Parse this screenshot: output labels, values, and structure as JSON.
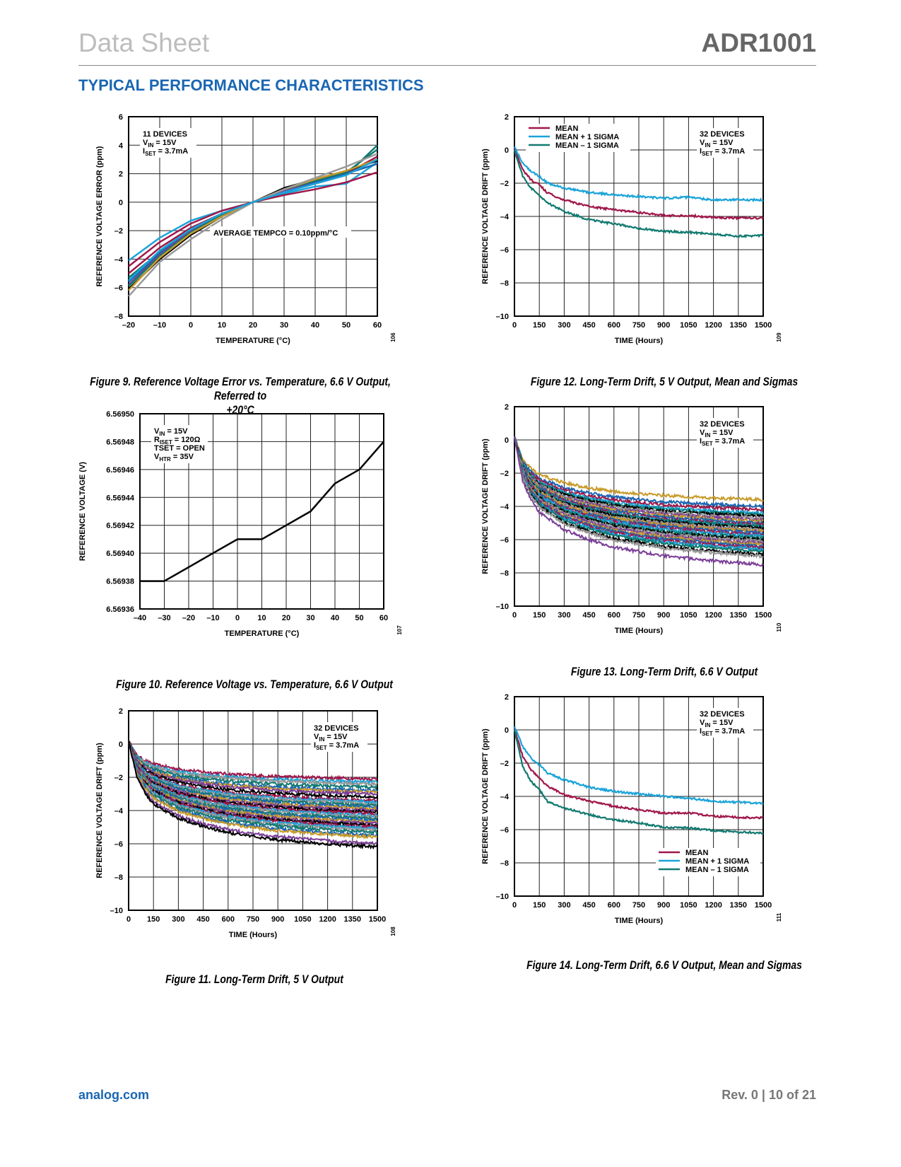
{
  "header": {
    "doc_type": "Data Sheet",
    "part_number": "ADR1001"
  },
  "section_title": "TYPICAL PERFORMANCE CHARACTERISTICS",
  "footer": {
    "website": "analog.com",
    "page_info": "Rev. 0 | 10 of 21"
  },
  "colors": {
    "accent": "#1a66b3",
    "mean": "#a0174a",
    "plus_sigma": "#1aa3d9",
    "minus_sigma": "#117a70"
  },
  "chart_data": [
    {
      "id": "fig9",
      "type": "line",
      "caption": "Figure 9. Reference Voltage Error vs. Temperature, 6.6 V Output, Referred to +20°C",
      "caption_line1": "Figure 9. Reference Voltage Error vs. Temperature, 6.6 V Output, Referred to",
      "caption_line2": "+20°C",
      "figure_code": "106",
      "xlabel": "TEMPERATURE (°C)",
      "ylabel": "REFERENCE VOLTAGE ERROR (ppm)",
      "xlim": [
        -20,
        60
      ],
      "ylim": [
        -8,
        6
      ],
      "xticks": [
        -20,
        -10,
        0,
        10,
        20,
        30,
        40,
        50,
        60
      ],
      "yticks": [
        -8,
        -6,
        -4,
        -2,
        0,
        2,
        4,
        6
      ],
      "xtick_labels": [
        "–20",
        "–10",
        "0",
        "10",
        "20",
        "30",
        "40",
        "50",
        "60"
      ],
      "ytick_labels": [
        "–8",
        "–6",
        "–4",
        "–2",
        "0",
        "2",
        "4",
        "6"
      ],
      "grid": true,
      "annotations": [
        "11 DEVICES",
        "V_IN = 15V",
        "I_SET = 3.7mA",
        "AVERAGE TEMPCO = 0.10ppm/°C"
      ],
      "x": [
        -20,
        -10,
        0,
        10,
        20,
        30,
        40,
        50,
        60
      ],
      "series": [
        {
          "name": "device-1",
          "color": "#1aa3d9",
          "values": [
            -4.1,
            -2.5,
            -1.3,
            -0.6,
            0,
            0.6,
            1.1,
            1.3,
            2.8
          ]
        },
        {
          "name": "device-2",
          "color": "#a0174a",
          "values": [
            -4.5,
            -2.8,
            -1.5,
            -0.6,
            0,
            0.5,
            0.9,
            1.4,
            2.1
          ]
        },
        {
          "name": "device-3",
          "color": "#a0174a",
          "values": [
            -5.0,
            -3.2,
            -1.8,
            -0.8,
            0,
            0.8,
            1.4,
            2.0,
            3.2
          ]
        },
        {
          "name": "device-4",
          "color": "#117a70",
          "values": [
            -5.3,
            -3.5,
            -1.9,
            -0.8,
            0,
            0.7,
            1.3,
            1.9,
            4.0
          ]
        },
        {
          "name": "device-5",
          "color": "#1a66b3",
          "values": [
            -5.6,
            -3.6,
            -2.0,
            -0.9,
            0,
            0.8,
            1.4,
            2.0,
            2.7
          ]
        },
        {
          "name": "device-6",
          "color": "#7b3f98",
          "values": [
            -5.8,
            -3.7,
            -2.0,
            -0.9,
            0,
            0.8,
            1.5,
            2.1,
            3.0
          ]
        },
        {
          "name": "device-7",
          "color": "#117a70",
          "values": [
            -5.9,
            -3.8,
            -2.1,
            -0.9,
            0,
            0.9,
            1.5,
            2.1,
            3.7
          ]
        },
        {
          "name": "device-8",
          "color": "#000000",
          "values": [
            -6.1,
            -4.0,
            -2.3,
            -1.0,
            0,
            1.0,
            1.6,
            2.2,
            2.9
          ]
        },
        {
          "name": "device-9",
          "color": "#c89a2a",
          "values": [
            -6.2,
            -3.9,
            -2.2,
            -1.0,
            0,
            0.9,
            1.6,
            2.2,
            3.0
          ]
        },
        {
          "name": "device-10",
          "color": "#999999",
          "values": [
            -6.6,
            -4.2,
            -2.6,
            -1.2,
            0,
            0.9,
            1.7,
            2.5,
            3.4
          ]
        },
        {
          "name": "device-11",
          "color": "#1aa3d9",
          "values": [
            -5.5,
            -3.4,
            -1.9,
            -0.8,
            0,
            0.7,
            1.3,
            1.9,
            3.0
          ]
        }
      ]
    },
    {
      "id": "fig10",
      "type": "line",
      "caption": "Figure 10. Reference Voltage vs. Temperature, 6.6 V Output",
      "figure_code": "107",
      "xlabel": "TEMPERATURE (°C)",
      "ylabel": "REFERENCE VOLTAGE (V)",
      "xlim": [
        -40,
        60
      ],
      "ylim": [
        6.56936,
        6.5695
      ],
      "xticks": [
        -40,
        -30,
        -20,
        -10,
        0,
        10,
        20,
        30,
        40,
        50,
        60
      ],
      "yticks": [
        6.56936,
        6.56938,
        6.5694,
        6.56942,
        6.56944,
        6.56946,
        6.56948,
        6.5695
      ],
      "xtick_labels": [
        "–40",
        "–30",
        "–20",
        "–10",
        "0",
        "10",
        "20",
        "30",
        "40",
        "50",
        "60"
      ],
      "ytick_labels": [
        "6.56936",
        "6.56938",
        "6.56940",
        "6.56942",
        "6.56944",
        "6.56946",
        "6.56948",
        "6.56950"
      ],
      "grid": true,
      "annotations": [
        "V_IN = 15V",
        "R_ISET = 120Ω",
        "TSET = OPEN",
        "V_HTR = 35V"
      ],
      "x": [
        -40,
        -30,
        -20,
        -10,
        0,
        10,
        20,
        30,
        40,
        50,
        60
      ],
      "series": [
        {
          "name": "reference-voltage",
          "color": "#000000",
          "values": [
            6.56938,
            6.56938,
            6.56939,
            6.5694,
            6.56941,
            6.56941,
            6.56942,
            6.56943,
            6.56945,
            6.56946,
            6.56948
          ]
        }
      ]
    },
    {
      "id": "fig11",
      "type": "line",
      "caption": "Figure 11. Long-Term Drift, 5 V Output",
      "figure_code": "108",
      "xlabel": "TIME (Hours)",
      "ylabel": "REFERENCE VOLTAGE DRIFT (ppm)",
      "xlim": [
        0,
        1500
      ],
      "ylim": [
        -10,
        2
      ],
      "xticks": [
        0,
        150,
        300,
        450,
        600,
        750,
        900,
        1050,
        1200,
        1350,
        1500
      ],
      "yticks": [
        -10,
        -8,
        -6,
        -4,
        -2,
        0,
        2
      ],
      "xtick_labels": [
        "0",
        "150",
        "300",
        "450",
        "600",
        "750",
        "900",
        "1050",
        "1200",
        "1350",
        "1500"
      ],
      "ytick_labels": [
        "–10",
        "–8",
        "–6",
        "–4",
        "–2",
        "0",
        "2"
      ],
      "grid": true,
      "annotations": [
        "32 DEVICES",
        "V_IN = 15V",
        "I_SET = 3.7mA"
      ],
      "num_series": 32,
      "final_drift_range_ppm": [
        -6.2,
        -2.1
      ],
      "series_final_values": [
        -2.1,
        -2.3,
        -2.4,
        -2.6,
        -2.8,
        -2.9,
        -3.0,
        -3.2,
        -3.4,
        -3.5,
        -3.6,
        -3.7,
        -3.8,
        -3.9,
        -4.0,
        -4.1,
        -4.2,
        -4.3,
        -4.4,
        -4.5,
        -4.6,
        -4.7,
        -4.8,
        -4.9,
        -5.0,
        -5.1,
        -5.2,
        -5.3,
        -5.5,
        -5.6,
        -6.0,
        -6.2
      ],
      "series_colors": [
        "#a0174a",
        "#1aa3d9",
        "#999999",
        "#117a70",
        "#1a66b3",
        "#c89a2a",
        "#7b3f98",
        "#000000"
      ]
    },
    {
      "id": "fig12",
      "type": "line",
      "caption": "Figure 12. Long-Term Drift, 5 V Output, Mean and Sigmas",
      "figure_code": "109",
      "xlabel": "TIME (Hours)",
      "ylabel": "REFERENCE VOLTAGE DRIFT (ppm)",
      "xlim": [
        0,
        1500
      ],
      "ylim": [
        -10,
        2
      ],
      "xticks": [
        0,
        150,
        300,
        450,
        600,
        750,
        900,
        1050,
        1200,
        1350,
        1500
      ],
      "yticks": [
        -10,
        -8,
        -6,
        -4,
        -2,
        0,
        2
      ],
      "xtick_labels": [
        "0",
        "150",
        "300",
        "450",
        "600",
        "750",
        "900",
        "1050",
        "1200",
        "1350",
        "1500"
      ],
      "ytick_labels": [
        "–10",
        "–8",
        "–6",
        "–4",
        "–2",
        "0",
        "2"
      ],
      "grid": true,
      "legend": {
        "placement": "top-left",
        "entries": [
          "MEAN",
          "MEAN + 1 SIGMA",
          "MEAN – 1 SIGMA"
        ]
      },
      "annotations": [
        "32 DEVICES",
        "V_IN = 15V",
        "I_SET = 3.7mA"
      ],
      "x": [
        0,
        50,
        100,
        150,
        200,
        300,
        450,
        600,
        750,
        900,
        1050,
        1200,
        1350,
        1500
      ],
      "series": [
        {
          "name": "MEAN",
          "color": "#a0174a",
          "values": [
            0.1,
            -1.2,
            -1.8,
            -2.1,
            -2.6,
            -3.0,
            -3.4,
            -3.6,
            -3.75,
            -3.95,
            -3.95,
            -4.05,
            -4.1,
            -4.1
          ]
        },
        {
          "name": "MEAN + 1 SIGMA",
          "color": "#1aa3d9",
          "values": [
            0.2,
            -0.8,
            -1.3,
            -1.6,
            -2.0,
            -2.3,
            -2.55,
            -2.7,
            -2.8,
            -2.9,
            -2.85,
            -3.0,
            -3.0,
            -3.0
          ]
        },
        {
          "name": "MEAN – 1 SIGMA",
          "color": "#117a70",
          "values": [
            0.0,
            -1.6,
            -2.3,
            -2.7,
            -3.2,
            -3.7,
            -4.2,
            -4.45,
            -4.7,
            -4.9,
            -4.95,
            -5.05,
            -5.2,
            -5.15
          ]
        }
      ]
    },
    {
      "id": "fig13",
      "type": "line",
      "caption": "Figure 13. Long-Term Drift, 6.6 V Output",
      "figure_code": "110",
      "xlabel": "TIME (Hours)",
      "ylabel": "REFERENCE VOLTAGE DRIFT (ppm)",
      "xlim": [
        0,
        1500
      ],
      "ylim": [
        -10,
        2
      ],
      "xticks": [
        0,
        150,
        300,
        450,
        600,
        750,
        900,
        1050,
        1200,
        1350,
        1500
      ],
      "yticks": [
        -10,
        -8,
        -6,
        -4,
        -2,
        0,
        2
      ],
      "xtick_labels": [
        "0",
        "150",
        "300",
        "450",
        "600",
        "750",
        "900",
        "1050",
        "1200",
        "1350",
        "1500"
      ],
      "ytick_labels": [
        "–10",
        "–8",
        "–6",
        "–4",
        "–2",
        "0",
        "2"
      ],
      "grid": true,
      "annotations": [
        "32 DEVICES",
        "V_IN = 15V",
        "I_SET = 3.7mA"
      ],
      "num_series": 32,
      "final_drift_range_ppm": [
        -7.5,
        -3.6
      ],
      "series_final_values": [
        -3.6,
        -4.0,
        -4.2,
        -4.4,
        -4.5,
        -4.6,
        -4.7,
        -4.8,
        -4.9,
        -5.0,
        -5.1,
        -5.2,
        -5.2,
        -5.3,
        -5.4,
        -5.5,
        -5.5,
        -5.6,
        -5.7,
        -5.8,
        -5.9,
        -6.0,
        -6.1,
        -6.2,
        -6.3,
        -6.4,
        -6.5,
        -6.6,
        -6.7,
        -6.9,
        -7.0,
        -7.5
      ],
      "series_colors": [
        "#c89a2a",
        "#1a66b3",
        "#a0174a",
        "#1aa3d9",
        "#117a70",
        "#000000",
        "#999999",
        "#7b3f98"
      ]
    },
    {
      "id": "fig14",
      "type": "line",
      "caption": "Figure 14. Long-Term Drift, 6.6 V Output, Mean and Sigmas",
      "figure_code": "111",
      "xlabel": "TIME (Hours)",
      "ylabel": "REFERENCE VOLTAGE DRIFT (ppm)",
      "xlim": [
        0,
        1500
      ],
      "ylim": [
        -10,
        2
      ],
      "xticks": [
        0,
        150,
        300,
        450,
        600,
        750,
        900,
        1050,
        1200,
        1350,
        1500
      ],
      "yticks": [
        -10,
        -8,
        -6,
        -4,
        -2,
        0,
        2
      ],
      "xtick_labels": [
        "0",
        "150",
        "300",
        "450",
        "600",
        "750",
        "900",
        "1050",
        "1200",
        "1350",
        "1500"
      ],
      "ytick_labels": [
        "–10",
        "–8",
        "–6",
        "–4",
        "–2",
        "0",
        "2"
      ],
      "grid": true,
      "legend": {
        "placement": "bottom-right",
        "entries": [
          "MEAN",
          "MEAN + 1 SIGMA",
          "MEAN – 1 SIGMA"
        ]
      },
      "annotations": [
        "32 DEVICES",
        "V_IN = 15V",
        "I_SET = 3.7mA"
      ],
      "x": [
        0,
        50,
        100,
        150,
        200,
        300,
        450,
        600,
        750,
        900,
        1050,
        1200,
        1350,
        1500
      ],
      "series": [
        {
          "name": "MEAN",
          "color": "#a0174a",
          "values": [
            0.1,
            -1.6,
            -2.4,
            -2.9,
            -3.4,
            -3.9,
            -4.3,
            -4.6,
            -4.8,
            -5.0,
            -5.0,
            -5.2,
            -5.25,
            -5.3
          ]
        },
        {
          "name": "MEAN + 1 SIGMA",
          "color": "#1aa3d9",
          "values": [
            0.2,
            -1.0,
            -1.7,
            -2.1,
            -2.6,
            -3.0,
            -3.45,
            -3.7,
            -3.85,
            -4.0,
            -4.1,
            -4.3,
            -4.35,
            -4.4
          ]
        },
        {
          "name": "MEAN – 1 SIGMA",
          "color": "#117a70",
          "values": [
            0.0,
            -2.2,
            -3.1,
            -3.6,
            -4.3,
            -4.7,
            -5.1,
            -5.4,
            -5.6,
            -5.85,
            -5.9,
            -6.05,
            -6.15,
            -6.2
          ]
        }
      ]
    }
  ]
}
